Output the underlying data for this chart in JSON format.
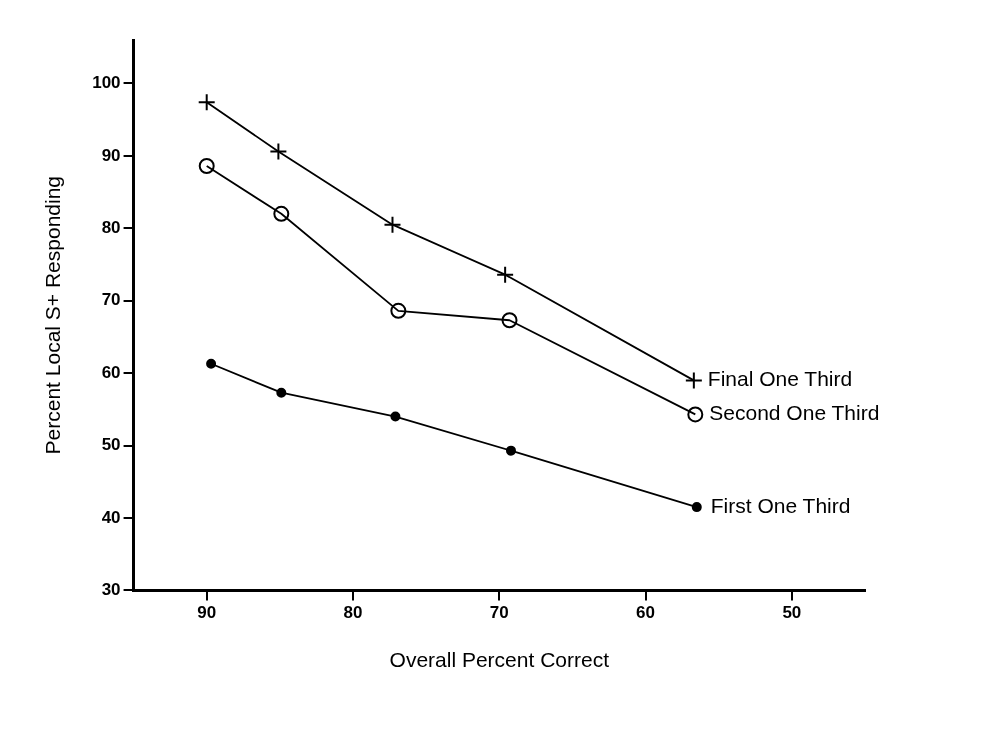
{
  "chart_data": {
    "type": "line",
    "xlabel": "Overall Percent Correct",
    "ylabel": "Percent Local S+ Responding",
    "xlim": [
      95,
      45
    ],
    "ylim": [
      30,
      106
    ],
    "xticks": [
      90,
      80,
      70,
      60,
      50
    ],
    "yticks": [
      30,
      40,
      50,
      60,
      70,
      80,
      90,
      100
    ],
    "grid": false,
    "legend": false,
    "series": [
      {
        "name": "Final One Third",
        "color": "#000000",
        "marker": "cross",
        "x": [
          90,
          85.1,
          77.3,
          69.6,
          56.7
        ],
        "values": [
          97.4,
          90.6,
          80.5,
          73.6,
          59
        ]
      },
      {
        "name": "Second One Third",
        "color": "#000000",
        "marker": "circle",
        "x": [
          90,
          84.9,
          76.9,
          69.3,
          56.6
        ],
        "values": [
          88.6,
          82,
          68.6,
          67.3,
          54.3
        ]
      },
      {
        "name": "First One Third",
        "color": "#000000",
        "marker": "dot",
        "x": [
          89.7,
          84.9,
          77.1,
          69.2,
          56.5
        ],
        "values": [
          61.3,
          57.3,
          54,
          49.3,
          41.5
        ]
      }
    ]
  }
}
